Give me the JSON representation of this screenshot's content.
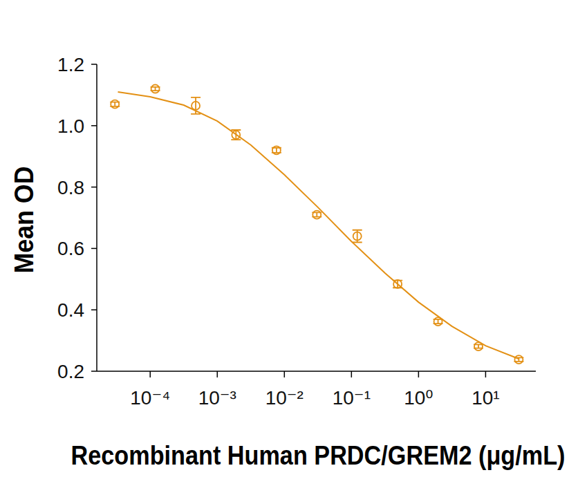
{
  "chart_data": {
    "type": "scatter",
    "x_label": "Recombinant Human PRDC/GREM2 (μg/mL)",
    "y_label": "Mean OD",
    "log": "x",
    "grid": false,
    "color": "#e39014",
    "xlim": [
      1.6e-05,
      56
    ],
    "ylim": [
      0.2,
      1.2
    ],
    "xticks": [
      {
        "value": 0.0001,
        "label": "10⁻⁴"
      },
      {
        "value": 0.001,
        "label": "10⁻³"
      },
      {
        "value": 0.01,
        "label": "10⁻²"
      },
      {
        "value": 0.1,
        "label": "10⁻¹"
      },
      {
        "value": 1,
        "label": "10⁰"
      },
      {
        "value": 10,
        "label": "10¹"
      }
    ],
    "yticks": [
      0.2,
      0.4,
      0.6,
      0.8,
      {
        "value": 1.0,
        "label": "1.0"
      },
      1.2
    ],
    "series": [
      {
        "type": "scatter",
        "marker": "circle",
        "color": "#e39014",
        "x": [
          2.98e-05,
          0.000119,
          0.000477,
          0.0019,
          0.00763,
          0.0305,
          0.122,
          0.488,
          1.953,
          7.8125,
          31.25
        ],
        "values": [
          1.07,
          1.12,
          1.065,
          0.97,
          0.92,
          0.71,
          0.64,
          0.484,
          0.362,
          0.281,
          0.238
        ],
        "errors": [
          0.007,
          0.006,
          0.027,
          0.016,
          0.008,
          0.007,
          0.02,
          0.012,
          0.007,
          0.006,
          0.006
        ]
      },
      {
        "type": "line",
        "line_style": "solid",
        "color": "#e39014",
        "x": [
          3.3e-05,
          0.0001,
          0.000316,
          0.001,
          0.00316,
          0.01,
          0.0316,
          0.1,
          0.316,
          1,
          3.16,
          10,
          31.6
        ],
        "values": [
          1.11,
          1.094,
          1.067,
          1.015,
          0.937,
          0.84,
          0.734,
          0.623,
          0.52,
          0.425,
          0.346,
          0.283,
          0.24
        ]
      }
    ]
  }
}
